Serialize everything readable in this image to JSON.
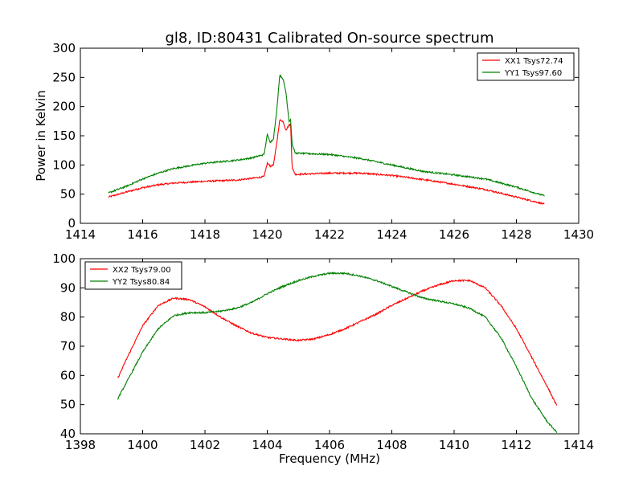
{
  "chart_data": [
    {
      "type": "line",
      "title": "gl8, ID:80431 Calibrated On-source spectrum",
      "xlabel": "",
      "ylabel": "Power in Kelvin",
      "xlim": [
        1414,
        1430
      ],
      "ylim": [
        0,
        300
      ],
      "xticks": [
        1414,
        1416,
        1418,
        1420,
        1422,
        1424,
        1426,
        1428,
        1430
      ],
      "yticks": [
        0,
        50,
        100,
        150,
        200,
        250,
        300
      ],
      "grid": false,
      "legend_position": "top-right",
      "series": [
        {
          "name": "XX1 Tsys72.74",
          "color": "#ff0000",
          "x": [
            1414.9,
            1415.5,
            1416.0,
            1416.5,
            1417.0,
            1418.0,
            1419.0,
            1419.5,
            1419.9,
            1420.0,
            1420.1,
            1420.2,
            1420.3,
            1420.4,
            1420.5,
            1420.6,
            1420.7,
            1420.75,
            1420.8,
            1420.9,
            1421.0,
            1422.0,
            1423.0,
            1424.0,
            1425.0,
            1426.0,
            1427.0,
            1428.0,
            1428.9
          ],
          "y": [
            45,
            54,
            61,
            66,
            69,
            72,
            74,
            77,
            80,
            103,
            98,
            100,
            135,
            177,
            175,
            160,
            168,
            170,
            95,
            84,
            84,
            86,
            86,
            82,
            75,
            67,
            58,
            45,
            33
          ]
        },
        {
          "name": "YY1 Tsys97.60",
          "color": "#008000",
          "x": [
            1414.9,
            1415.5,
            1416.0,
            1416.5,
            1417.0,
            1418.0,
            1419.0,
            1419.5,
            1419.9,
            1420.0,
            1420.1,
            1420.2,
            1420.3,
            1420.4,
            1420.5,
            1420.6,
            1420.7,
            1420.75,
            1420.8,
            1420.9,
            1421.0,
            1422.0,
            1423.0,
            1424.0,
            1425.0,
            1426.0,
            1427.0,
            1428.0,
            1428.9
          ],
          "y": [
            52,
            64,
            76,
            86,
            94,
            103,
            108,
            112,
            118,
            152,
            139,
            145,
            190,
            254,
            248,
            225,
            175,
            178,
            135,
            120,
            120,
            118,
            111,
            100,
            89,
            83,
            76,
            62,
            47
          ]
        }
      ]
    },
    {
      "type": "line",
      "title": "",
      "xlabel": "Frequency (MHz)",
      "ylabel": "",
      "xlim": [
        1398,
        1414
      ],
      "ylim": [
        40,
        100
      ],
      "xticks": [
        1398,
        1400,
        1402,
        1404,
        1406,
        1408,
        1410,
        1412,
        1414
      ],
      "yticks": [
        40,
        50,
        60,
        70,
        80,
        90,
        100
      ],
      "grid": false,
      "legend_position": "top-left",
      "series": [
        {
          "name": "XX2 Tsys79.00",
          "color": "#ff0000",
          "x": [
            1399.2,
            1399.5,
            1400.0,
            1400.5,
            1401.0,
            1401.5,
            1402.0,
            1402.5,
            1403.0,
            1403.5,
            1404.0,
            1404.5,
            1405.0,
            1405.5,
            1406.0,
            1406.5,
            1407.0,
            1407.5,
            1408.0,
            1408.5,
            1409.0,
            1409.5,
            1410.0,
            1410.5,
            1411.0,
            1411.5,
            1412.0,
            1412.5,
            1413.0,
            1413.3
          ],
          "y": [
            59,
            66,
            77,
            84,
            86.5,
            86,
            83.5,
            80,
            77,
            74.5,
            73,
            72.5,
            72,
            72.5,
            74,
            76,
            78.5,
            81,
            84,
            86.5,
            89,
            91,
            92.5,
            92.5,
            90,
            84,
            76,
            66,
            56,
            49.5
          ]
        },
        {
          "name": "YY2 Tsys80.84",
          "color": "#008000",
          "x": [
            1399.2,
            1399.5,
            1400.0,
            1400.5,
            1401.0,
            1401.5,
            1402.0,
            1402.5,
            1403.0,
            1403.5,
            1404.0,
            1404.5,
            1405.0,
            1405.5,
            1406.0,
            1406.5,
            1407.0,
            1407.5,
            1408.0,
            1408.5,
            1409.0,
            1409.5,
            1410.0,
            1410.5,
            1411.0,
            1411.5,
            1412.0,
            1412.5,
            1413.0,
            1413.3
          ],
          "y": [
            52,
            58,
            68,
            76,
            80.5,
            81.5,
            81.5,
            82,
            83,
            85,
            88,
            90.5,
            92.5,
            94,
            95,
            95,
            94,
            92.5,
            90.5,
            88.5,
            86.5,
            85.5,
            84.5,
            83,
            80,
            73,
            63,
            52,
            44,
            40.5
          ]
        }
      ]
    }
  ]
}
